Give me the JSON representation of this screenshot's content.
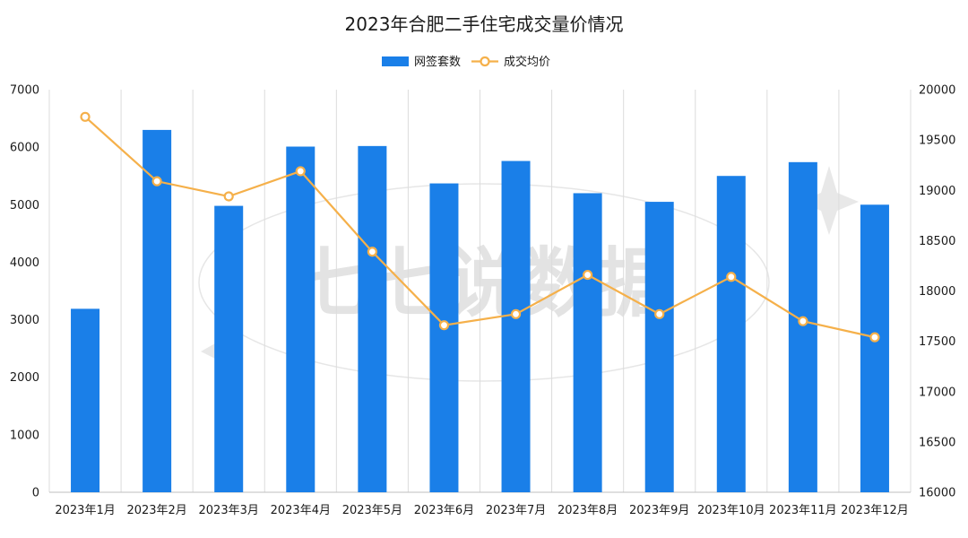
{
  "chart_data": {
    "type": "bar+line",
    "title": "2023年合肥二手住宅成交量价情况",
    "categories": [
      "2023年1月",
      "2023年2月",
      "2023年3月",
      "2023年4月",
      "2023年5月",
      "2023年6月",
      "2023年7月",
      "2023年8月",
      "2023年9月",
      "2023年10月",
      "2023年11月",
      "2023年12月"
    ],
    "series": [
      {
        "name": "网签套数",
        "kind": "bar",
        "axis": "left",
        "color": "#1a7fe8",
        "values": [
          3190,
          6300,
          4980,
          6010,
          6020,
          5370,
          5760,
          5200,
          5050,
          5500,
          5740,
          5000
        ]
      },
      {
        "name": "成交均价",
        "kind": "line",
        "axis": "right",
        "color": "#f5b04a",
        "values": [
          19730,
          19090,
          18940,
          19190,
          18390,
          17660,
          17770,
          18160,
          17770,
          18140,
          17700,
          17540
        ]
      }
    ],
    "y_left": {
      "min": 0,
      "max": 7000,
      "ticks": [
        0,
        1000,
        2000,
        3000,
        4000,
        5000,
        6000,
        7000
      ]
    },
    "y_right": {
      "min": 16000,
      "max": 20000,
      "ticks": [
        16000,
        16500,
        17000,
        17500,
        18000,
        18500,
        19000,
        19500,
        20000
      ]
    },
    "grid": "vertical",
    "legend_position": "top-center",
    "watermark": "七七说数据"
  }
}
